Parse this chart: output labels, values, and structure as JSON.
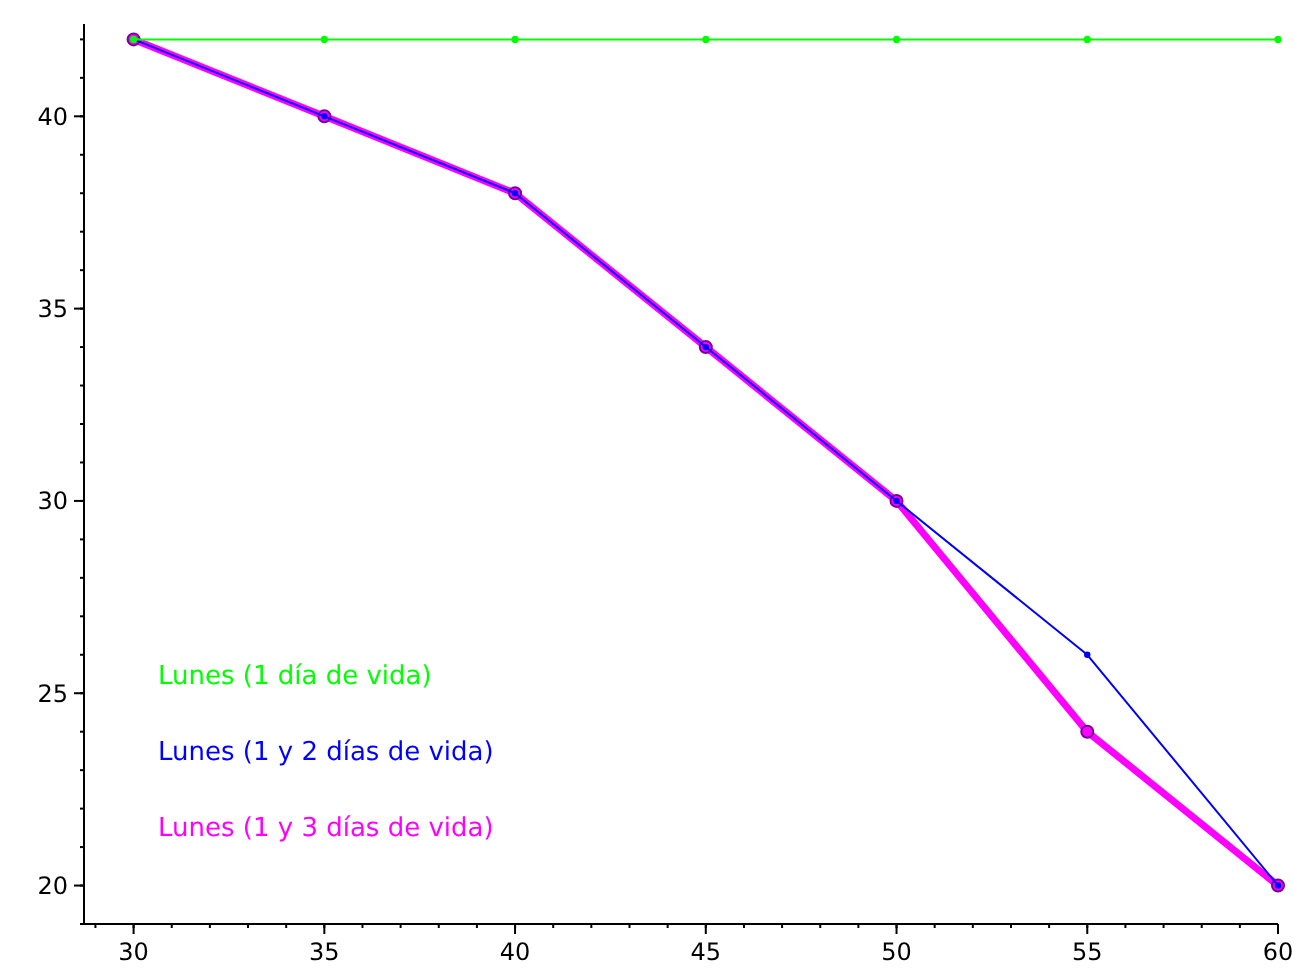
{
  "chart_data": {
    "type": "line",
    "x": [
      30,
      35,
      40,
      45,
      50,
      55,
      60
    ],
    "series": [
      {
        "name": "Lunes (1 día de vida)",
        "color": "#00ff00",
        "values": [
          42,
          42,
          42,
          42,
          42,
          42,
          42
        ]
      },
      {
        "name": "Lunes (1 y 3 días de vida)",
        "color": "#ff00ff",
        "values": [
          42,
          40,
          38,
          34,
          30,
          24,
          20
        ]
      },
      {
        "name": "Lunes (1 y 2 días de vida)",
        "color": "#0000ff",
        "values": [
          42,
          40,
          38,
          34,
          30,
          26,
          20
        ]
      }
    ],
    "xlim": [
      28.7,
      60
    ],
    "ylim": [
      19,
      42.4
    ],
    "xticks": [
      30,
      35,
      40,
      45,
      50,
      55,
      60
    ],
    "yticks": [
      20,
      25,
      30,
      35,
      40
    ],
    "marker": "circle",
    "line_style": "solid",
    "grid": false,
    "legend": "bottom left"
  }
}
